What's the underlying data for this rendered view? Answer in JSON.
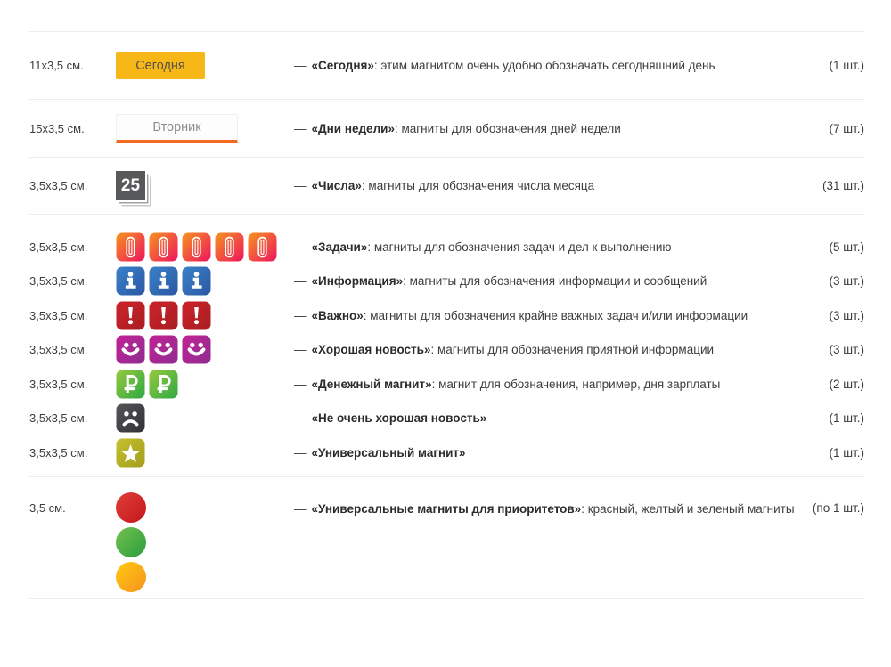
{
  "strings": {
    "dash": "—"
  },
  "colors": {
    "today_bg": "#f7b717",
    "today_text": "#55524b",
    "weekday_bg": "#fdfdfd",
    "weekday_border": "#f0f0f0",
    "weekday_underline": "#f26a22",
    "weekday_text": "#8d8d8d",
    "number_bg": "#58595b",
    "divider": "#ececec",
    "text": "#3d3d3d",
    "gradients": {
      "clip": [
        "#f7941e",
        "#ed155f"
      ],
      "info": [
        "#3b82c9",
        "#2a57a3"
      ],
      "important": [
        "#cb242a",
        "#a91d22"
      ],
      "smile": [
        "#c32295",
        "#8e2c90"
      ],
      "ruble": [
        "#96c93d",
        "#2fa844"
      ],
      "sad": [
        "#55565a",
        "#313133"
      ],
      "star": [
        "#c6c02f",
        "#a39d1e"
      ],
      "circle_red": [
        "#e04038",
        "#c3161c"
      ],
      "circle_green": [
        "#74c24f",
        "#289c3c"
      ],
      "circle_yellow": [
        "#ffc90e",
        "#f6921e"
      ]
    }
  },
  "rows": [
    {
      "size": "11x3,5 см.",
      "magnet": {
        "kind": "today",
        "label": "Сегодня"
      },
      "title": "«Сегодня»",
      "desc": ": этим магнитом очень удобно обозначать сегодняшний день",
      "count": "(1 шт.)"
    },
    {
      "size": "15x3,5 см.",
      "magnet": {
        "kind": "weekday",
        "label": "Вторник"
      },
      "title": "«Дни недели»",
      "desc": ": магниты для обозначения дней недели",
      "count": "(7 шт.)"
    },
    {
      "size": "3,5x3,5 см.",
      "magnet": {
        "kind": "number",
        "label": "25"
      },
      "title": "«Числа»",
      "desc": ": магниты для обозначения числа месяца",
      "count": "(31 шт.)"
    },
    {
      "size": "3,5x3,5 см.",
      "magnet": {
        "kind": "clip",
        "n": 5
      },
      "title": "«Задачи»",
      "desc": ": магниты для обозначения задач и дел к выполнению",
      "count": "(5 шт.)"
    },
    {
      "size": "3,5x3,5 см.",
      "magnet": {
        "kind": "info",
        "n": 3
      },
      "title": "«Информация»",
      "desc": ": магниты для обозначения информации и сообщений",
      "count": "(3 шт.)"
    },
    {
      "size": "3,5x3,5 см.",
      "magnet": {
        "kind": "important",
        "n": 3
      },
      "title": "«Важно»",
      "desc": ": магниты для обозначения крайне важных задач и/или информации",
      "count": "(3 шт.)"
    },
    {
      "size": "3,5x3,5 см.",
      "magnet": {
        "kind": "smile",
        "n": 3
      },
      "title": "«Хорошая новость»",
      "desc": ": магниты для обозначения приятной информации",
      "count": "(3 шт.)"
    },
    {
      "size": "3,5x3,5 см.",
      "magnet": {
        "kind": "ruble",
        "n": 2
      },
      "title": "«Денежный магнит»",
      "desc": ": магнит для обозначения, например, дня зарплаты",
      "count": "(2 шт.)"
    },
    {
      "size": "3,5x3,5 см.",
      "magnet": {
        "kind": "sad",
        "n": 1
      },
      "title": "«Не очень хорошая новость»",
      "desc": "",
      "count": "(1 шт.)"
    },
    {
      "size": "3,5x3,5 см.",
      "magnet": {
        "kind": "star",
        "n": 1
      },
      "title": "«Универсальный магнит»",
      "desc": "",
      "count": "(1 шт.)"
    },
    {
      "size": "3,5 см.",
      "magnet": {
        "kind": "circles",
        "colors": [
          "circle_red",
          "circle_green",
          "circle_yellow"
        ]
      },
      "title": "«Универсальные магниты для приоритетов»",
      "desc": ": красный, желтый и зеленый магниты",
      "count": "(по 1 шт.)"
    }
  ]
}
